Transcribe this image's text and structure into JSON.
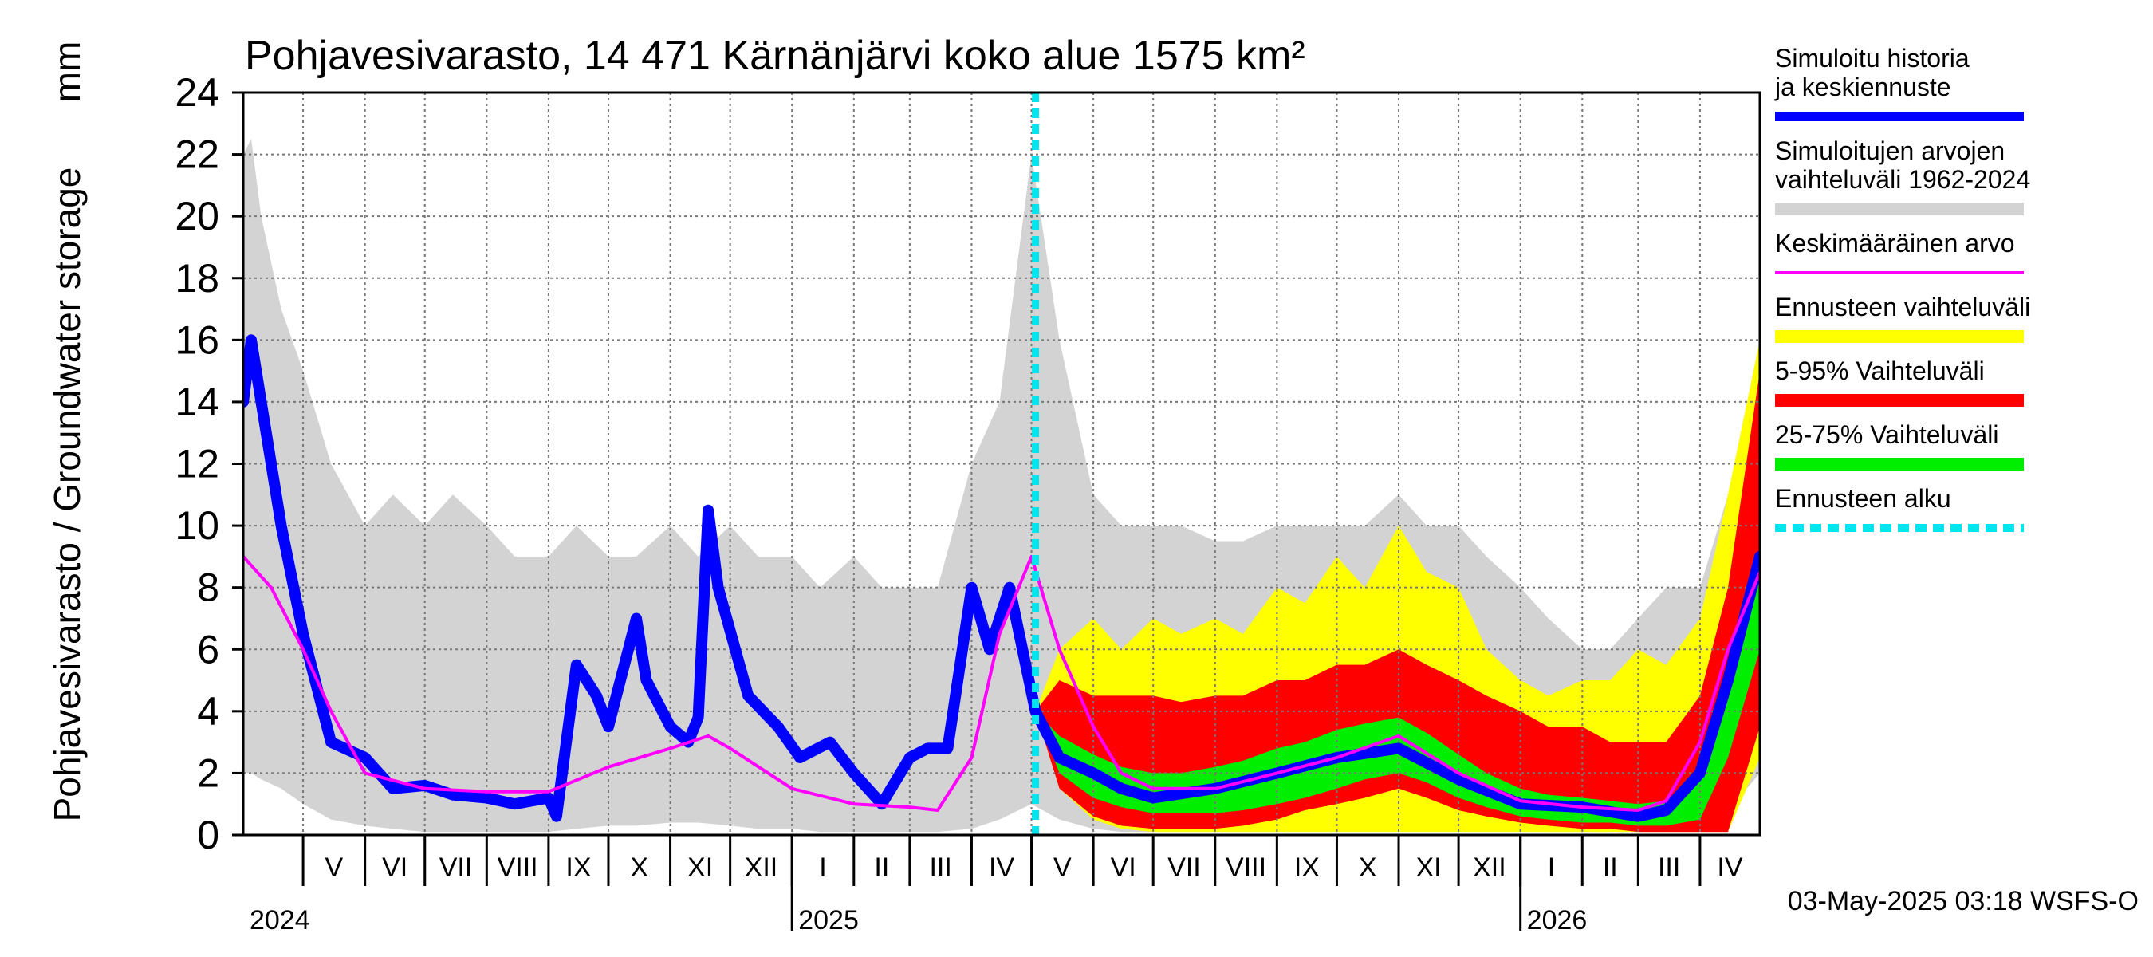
{
  "chart_data": {
    "type": "area",
    "title": "Pohjavesivarasto, 14 471 Kärnänjärvi koko alue 1575 km²",
    "ylabel": "Pohjavesivarasto / Groundwater storage",
    "yunit": "mm",
    "ylim": [
      0,
      24
    ],
    "yticks": [
      0,
      2,
      4,
      6,
      8,
      10,
      12,
      14,
      16,
      18,
      20,
      22,
      24
    ],
    "grid": true,
    "legend_position": "right",
    "x_range": [
      "2024-04-01",
      "2026-05-01"
    ],
    "forecast_start": "2025-05-03",
    "months": [
      {
        "label": "V",
        "start": "2024-05-01"
      },
      {
        "label": "VI",
        "start": "2024-06-01"
      },
      {
        "label": "VII",
        "start": "2024-07-01"
      },
      {
        "label": "VIII",
        "start": "2024-08-01"
      },
      {
        "label": "IX",
        "start": "2024-09-01"
      },
      {
        "label": "X",
        "start": "2024-10-01"
      },
      {
        "label": "XI",
        "start": "2024-11-01"
      },
      {
        "label": "XII",
        "start": "2024-12-01"
      },
      {
        "label": "I",
        "start": "2025-01-01"
      },
      {
        "label": "II",
        "start": "2025-02-01"
      },
      {
        "label": "III",
        "start": "2025-03-01"
      },
      {
        "label": "IV",
        "start": "2025-04-01"
      },
      {
        "label": "V",
        "start": "2025-05-01"
      },
      {
        "label": "VI",
        "start": "2025-06-01"
      },
      {
        "label": "VII",
        "start": "2025-07-01"
      },
      {
        "label": "VIII",
        "start": "2025-08-01"
      },
      {
        "label": "IX",
        "start": "2025-09-01"
      },
      {
        "label": "X",
        "start": "2025-10-01"
      },
      {
        "label": "XI",
        "start": "2025-11-01"
      },
      {
        "label": "XII",
        "start": "2025-12-01"
      },
      {
        "label": "I",
        "start": "2026-01-01"
      },
      {
        "label": "II",
        "start": "2026-02-01"
      },
      {
        "label": "III",
        "start": "2026-03-01"
      },
      {
        "label": "IV",
        "start": "2026-04-01"
      }
    ],
    "years": [
      {
        "label": "2024",
        "start": "2024-04-01"
      },
      {
        "label": "2025",
        "start": "2025-01-01"
      },
      {
        "label": "2026",
        "start": "2026-01-01"
      }
    ],
    "legend": [
      {
        "label": "Simuloitu historia ja keskiennuste",
        "color": "#0000ff",
        "style": "line"
      },
      {
        "label": "Simuloitujen arvojen vaihteluväli 1962-2024",
        "color": "#d3d3d3",
        "style": "band"
      },
      {
        "label": "Keskimääräinen arvo",
        "color": "#ff00ff",
        "style": "line"
      },
      {
        "label": "Ennusteen vaihteluväli",
        "color": "#ffff00",
        "style": "band"
      },
      {
        "label": "5-95% Vaihteluväli",
        "color": "#ff0000",
        "style": "band"
      },
      {
        "label": "25-75% Vaihteluväli",
        "color": "#00ee00",
        "style": "band"
      },
      {
        "label": "Ennusteen alku",
        "color": "#00e5ee",
        "style": "dashed"
      }
    ],
    "series": [
      {
        "name": "Simuloitu historia ja keskiennuste",
        "color": "#0000ff",
        "x": [
          "2024-04-01",
          "2024-04-05",
          "2024-04-10",
          "2024-04-20",
          "2024-05-01",
          "2024-05-15",
          "2024-06-01",
          "2024-06-15",
          "2024-07-01",
          "2024-07-15",
          "2024-08-01",
          "2024-08-15",
          "2024-09-01",
          "2024-09-05",
          "2024-09-15",
          "2024-09-25",
          "2024-10-01",
          "2024-10-15",
          "2024-10-20",
          "2024-11-01",
          "2024-11-10",
          "2024-11-15",
          "2024-11-20",
          "2024-11-25",
          "2024-12-10",
          "2024-12-25",
          "2025-01-05",
          "2025-01-20",
          "2025-02-01",
          "2025-02-15",
          "2025-03-01",
          "2025-03-10",
          "2025-03-20",
          "2025-04-01",
          "2025-04-10",
          "2025-04-20",
          "2025-05-03",
          "2025-05-15",
          "2025-06-01",
          "2025-06-15",
          "2025-07-01",
          "2025-08-01",
          "2025-09-01",
          "2025-10-01",
          "2025-11-01",
          "2025-12-01",
          "2026-01-01",
          "2026-02-01",
          "2026-03-01",
          "2026-03-15",
          "2026-04-01",
          "2026-04-15",
          "2026-05-01"
        ],
        "values": [
          14,
          16,
          14,
          10,
          6.5,
          3,
          2.5,
          1.5,
          1.6,
          1.3,
          1.2,
          1.0,
          1.2,
          0.6,
          5.5,
          4.5,
          3.5,
          7,
          5,
          3.5,
          3.0,
          3.8,
          10.5,
          8,
          4.5,
          3.5,
          2.5,
          3.0,
          2.0,
          1.0,
          2.5,
          2.8,
          2.8,
          8,
          6,
          8,
          4,
          2.5,
          2,
          1.5,
          1.2,
          1.5,
          2,
          2.5,
          2.8,
          1.8,
          1.0,
          0.9,
          0.6,
          0.8,
          2,
          5,
          9
        ]
      },
      {
        "name": "Keskimääräinen arvo",
        "color": "#ff00ff",
        "x": [
          "2024-04-01",
          "2024-04-15",
          "2024-05-01",
          "2024-05-15",
          "2024-06-01",
          "2024-07-01",
          "2024-08-01",
          "2024-09-01",
          "2024-10-01",
          "2024-11-01",
          "2024-11-20",
          "2024-12-01",
          "2025-01-01",
          "2025-02-01",
          "2025-03-01",
          "2025-03-15",
          "2025-04-01",
          "2025-04-15",
          "2025-05-01",
          "2025-05-15",
          "2025-06-01",
          "2025-06-15",
          "2025-07-01",
          "2025-08-01",
          "2025-09-01",
          "2025-10-01",
          "2025-11-01",
          "2025-12-01",
          "2026-01-01",
          "2026-02-01",
          "2026-03-01",
          "2026-03-15",
          "2026-04-01",
          "2026-04-15",
          "2026-05-01"
        ],
        "values": [
          9,
          8,
          6,
          4,
          2,
          1.5,
          1.4,
          1.4,
          2.2,
          2.8,
          3.2,
          2.8,
          1.5,
          1.0,
          0.9,
          0.8,
          2.5,
          6.5,
          9,
          6,
          3.5,
          2,
          1.5,
          1.5,
          2,
          2.5,
          3.2,
          2,
          1.1,
          0.9,
          0.8,
          1.1,
          3,
          6,
          8.5
        ]
      }
    ],
    "bands": [
      {
        "name": "Simuloitujen arvojen vaihteluväli 1962-2024",
        "color": "#d3d3d3",
        "x": [
          "2024-04-01",
          "2024-04-05",
          "2024-04-10",
          "2024-04-20",
          "2024-05-01",
          "2024-05-15",
          "2024-06-01",
          "2024-06-15",
          "2024-07-01",
          "2024-07-15",
          "2024-08-01",
          "2024-08-15",
          "2024-09-01",
          "2024-09-15",
          "2024-10-01",
          "2024-10-15",
          "2024-11-01",
          "2024-11-15",
          "2024-12-01",
          "2024-12-15",
          "2025-01-01",
          "2025-01-15",
          "2025-02-01",
          "2025-02-15",
          "2025-03-01",
          "2025-03-15",
          "2025-04-01",
          "2025-04-15",
          "2025-05-01",
          "2025-05-15",
          "2025-06-01",
          "2025-06-15",
          "2025-07-01",
          "2025-07-15",
          "2025-08-01",
          "2025-08-15",
          "2025-09-01",
          "2025-09-15",
          "2025-10-01",
          "2025-10-15",
          "2025-11-01",
          "2025-11-15",
          "2025-12-01",
          "2025-12-15",
          "2026-01-01",
          "2026-01-15",
          "2026-02-01",
          "2026-02-15",
          "2026-03-01",
          "2026-03-15",
          "2026-04-01",
          "2026-04-15",
          "2026-05-01"
        ],
        "lower": [
          2,
          2,
          1.8,
          1.5,
          1.0,
          0.5,
          0.3,
          0.2,
          0.1,
          0.1,
          0.1,
          0.1,
          0.1,
          0.2,
          0.3,
          0.3,
          0.4,
          0.4,
          0.3,
          0.2,
          0.2,
          0.1,
          0.1,
          0.1,
          0.1,
          0.1,
          0.2,
          0.5,
          1.0,
          0.5,
          0.2,
          0.1,
          0.1,
          0.1,
          0.1,
          0.1,
          0.1,
          0.2,
          0.2,
          0.3,
          0.3,
          0.3,
          0.3,
          0.2,
          0.2,
          0.1,
          0.1,
          0.1,
          0.1,
          0.1,
          0.2,
          0.8,
          2.0
        ],
        "upper": [
          22,
          22.5,
          20,
          17,
          15,
          12,
          10,
          11,
          10,
          11,
          10,
          9,
          9,
          10,
          9,
          9,
          10,
          9,
          10,
          9,
          9,
          8,
          9,
          8,
          8,
          8,
          12,
          14,
          22,
          16,
          11,
          10,
          10,
          10,
          9.5,
          9.5,
          10,
          10,
          10,
          10,
          11,
          10,
          10,
          9,
          8,
          7,
          6,
          6,
          7,
          8,
          8,
          11,
          16
        ]
      },
      {
        "name": "Ennusteen vaihteluväli",
        "color": "#ffff00",
        "x": [
          "2025-05-03",
          "2025-05-15",
          "2025-06-01",
          "2025-06-15",
          "2025-07-01",
          "2025-07-15",
          "2025-08-01",
          "2025-08-15",
          "2025-09-01",
          "2025-09-15",
          "2025-10-01",
          "2025-10-15",
          "2025-11-01",
          "2025-11-15",
          "2025-12-01",
          "2025-12-15",
          "2026-01-01",
          "2026-01-15",
          "2026-02-01",
          "2026-02-15",
          "2026-03-01",
          "2026-03-15",
          "2026-04-01",
          "2026-04-15",
          "2026-05-01"
        ],
        "lower": [
          4,
          1.5,
          0.5,
          0.2,
          0.1,
          0.1,
          0.1,
          0.1,
          0.1,
          0.1,
          0.1,
          0.1,
          0.1,
          0.1,
          0.1,
          0.1,
          0.1,
          0.1,
          0.1,
          0.1,
          0.1,
          0.1,
          0.1,
          0.1,
          2.5
        ],
        "upper": [
          4,
          6,
          7,
          6,
          7,
          6.5,
          7,
          6.5,
          8,
          7.5,
          9,
          8,
          10,
          8.5,
          8,
          6,
          5,
          4.5,
          5,
          5,
          6,
          5.5,
          7,
          11,
          16
        ]
      },
      {
        "name": "5-95% Vaihteluväli",
        "color": "#ff0000",
        "x": [
          "2025-05-03",
          "2025-05-15",
          "2025-06-01",
          "2025-06-15",
          "2025-07-01",
          "2025-07-15",
          "2025-08-01",
          "2025-08-15",
          "2025-09-01",
          "2025-09-15",
          "2025-10-01",
          "2025-10-15",
          "2025-11-01",
          "2025-11-15",
          "2025-12-01",
          "2025-12-15",
          "2026-01-01",
          "2026-01-15",
          "2026-02-01",
          "2026-02-15",
          "2026-03-01",
          "2026-03-15",
          "2026-04-01",
          "2026-04-15",
          "2026-05-01"
        ],
        "lower": [
          4,
          1.5,
          0.6,
          0.3,
          0.2,
          0.2,
          0.2,
          0.3,
          0.5,
          0.8,
          1.0,
          1.2,
          1.5,
          1.2,
          0.8,
          0.6,
          0.4,
          0.3,
          0.2,
          0.2,
          0.1,
          0.1,
          0.1,
          0.1,
          3.5
        ],
        "upper": [
          4,
          5,
          4.5,
          4.5,
          4.5,
          4.3,
          4.5,
          4.5,
          5,
          5,
          5.5,
          5.5,
          6,
          5.5,
          5,
          4.5,
          4,
          3.5,
          3.5,
          3,
          3,
          3,
          4.5,
          8,
          15
        ]
      },
      {
        "name": "25-75% Vaihteluväli",
        "color": "#00ee00",
        "x": [
          "2025-05-03",
          "2025-05-15",
          "2025-06-01",
          "2025-06-15",
          "2025-07-01",
          "2025-07-15",
          "2025-08-01",
          "2025-08-15",
          "2025-09-01",
          "2025-09-15",
          "2025-10-01",
          "2025-10-15",
          "2025-11-01",
          "2025-11-15",
          "2025-12-01",
          "2025-12-15",
          "2026-01-01",
          "2026-01-15",
          "2026-02-01",
          "2026-02-15",
          "2026-03-01",
          "2026-03-15",
          "2026-04-01",
          "2026-04-15",
          "2026-05-01"
        ],
        "lower": [
          4,
          2,
          1.2,
          0.9,
          0.7,
          0.7,
          0.7,
          0.8,
          1.0,
          1.2,
          1.5,
          1.8,
          2.0,
          1.7,
          1.2,
          0.9,
          0.6,
          0.5,
          0.4,
          0.4,
          0.3,
          0.3,
          0.5,
          2.5,
          6
        ],
        "upper": [
          4,
          3.2,
          2.6,
          2.2,
          2.0,
          2.0,
          2.2,
          2.4,
          2.8,
          3.0,
          3.4,
          3.6,
          3.8,
          3.3,
          2.6,
          2.0,
          1.5,
          1.3,
          1.2,
          1.1,
          1.0,
          1.1,
          2.0,
          4.5,
          9
        ]
      }
    ],
    "timestamp": "03-May-2025 03:18 WSFS-O"
  }
}
